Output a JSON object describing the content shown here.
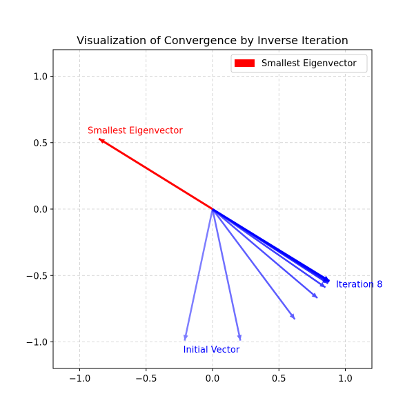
{
  "chart_data": {
    "type": "quiver",
    "title": "Visualization of Convergence by Inverse Iteration",
    "xlabel": "",
    "ylabel": "",
    "xlim": [
      -1.2,
      1.2
    ],
    "ylim": [
      -1.2,
      1.2
    ],
    "xticks": [
      -1.0,
      -0.5,
      0.0,
      0.5,
      1.0
    ],
    "yticks": [
      -1.0,
      -0.5,
      0.0,
      0.5,
      1.0
    ],
    "xtick_labels": [
      "−1.0",
      "−0.5",
      "0.0",
      "0.5",
      "1.0"
    ],
    "ytick_labels": [
      "−1.0",
      "−0.5",
      "0.0",
      "0.5",
      "1.0"
    ],
    "grid": true,
    "legend": {
      "placement": "top-right",
      "entries": [
        {
          "label": "Smallest Eigenvector",
          "color": "#ff0000"
        }
      ]
    },
    "eigenvector": {
      "x": -0.855,
      "y": 0.53,
      "color": "#ff0000",
      "label": "Smallest Eigenvector",
      "label_pos": [
        -0.94,
        0.57
      ]
    },
    "iterations": {
      "color": "#0000ff",
      "vectors": [
        {
          "x": -0.21,
          "y": -0.99
        },
        {
          "x": 0.21,
          "y": -0.99
        },
        {
          "x": 0.62,
          "y": -0.83
        },
        {
          "x": 0.79,
          "y": -0.67
        },
        {
          "x": 0.85,
          "y": -0.59
        },
        {
          "x": 0.87,
          "y": -0.56
        },
        {
          "x": 0.875,
          "y": -0.55
        },
        {
          "x": 0.88,
          "y": -0.545
        },
        {
          "x": 0.88,
          "y": -0.54
        }
      ],
      "first_label": "Initial Vector",
      "first_label_pos": [
        -0.22,
        -1.08
      ],
      "last_label": "Iteration 8",
      "last_label_pos": [
        0.93,
        -0.59
      ]
    }
  }
}
